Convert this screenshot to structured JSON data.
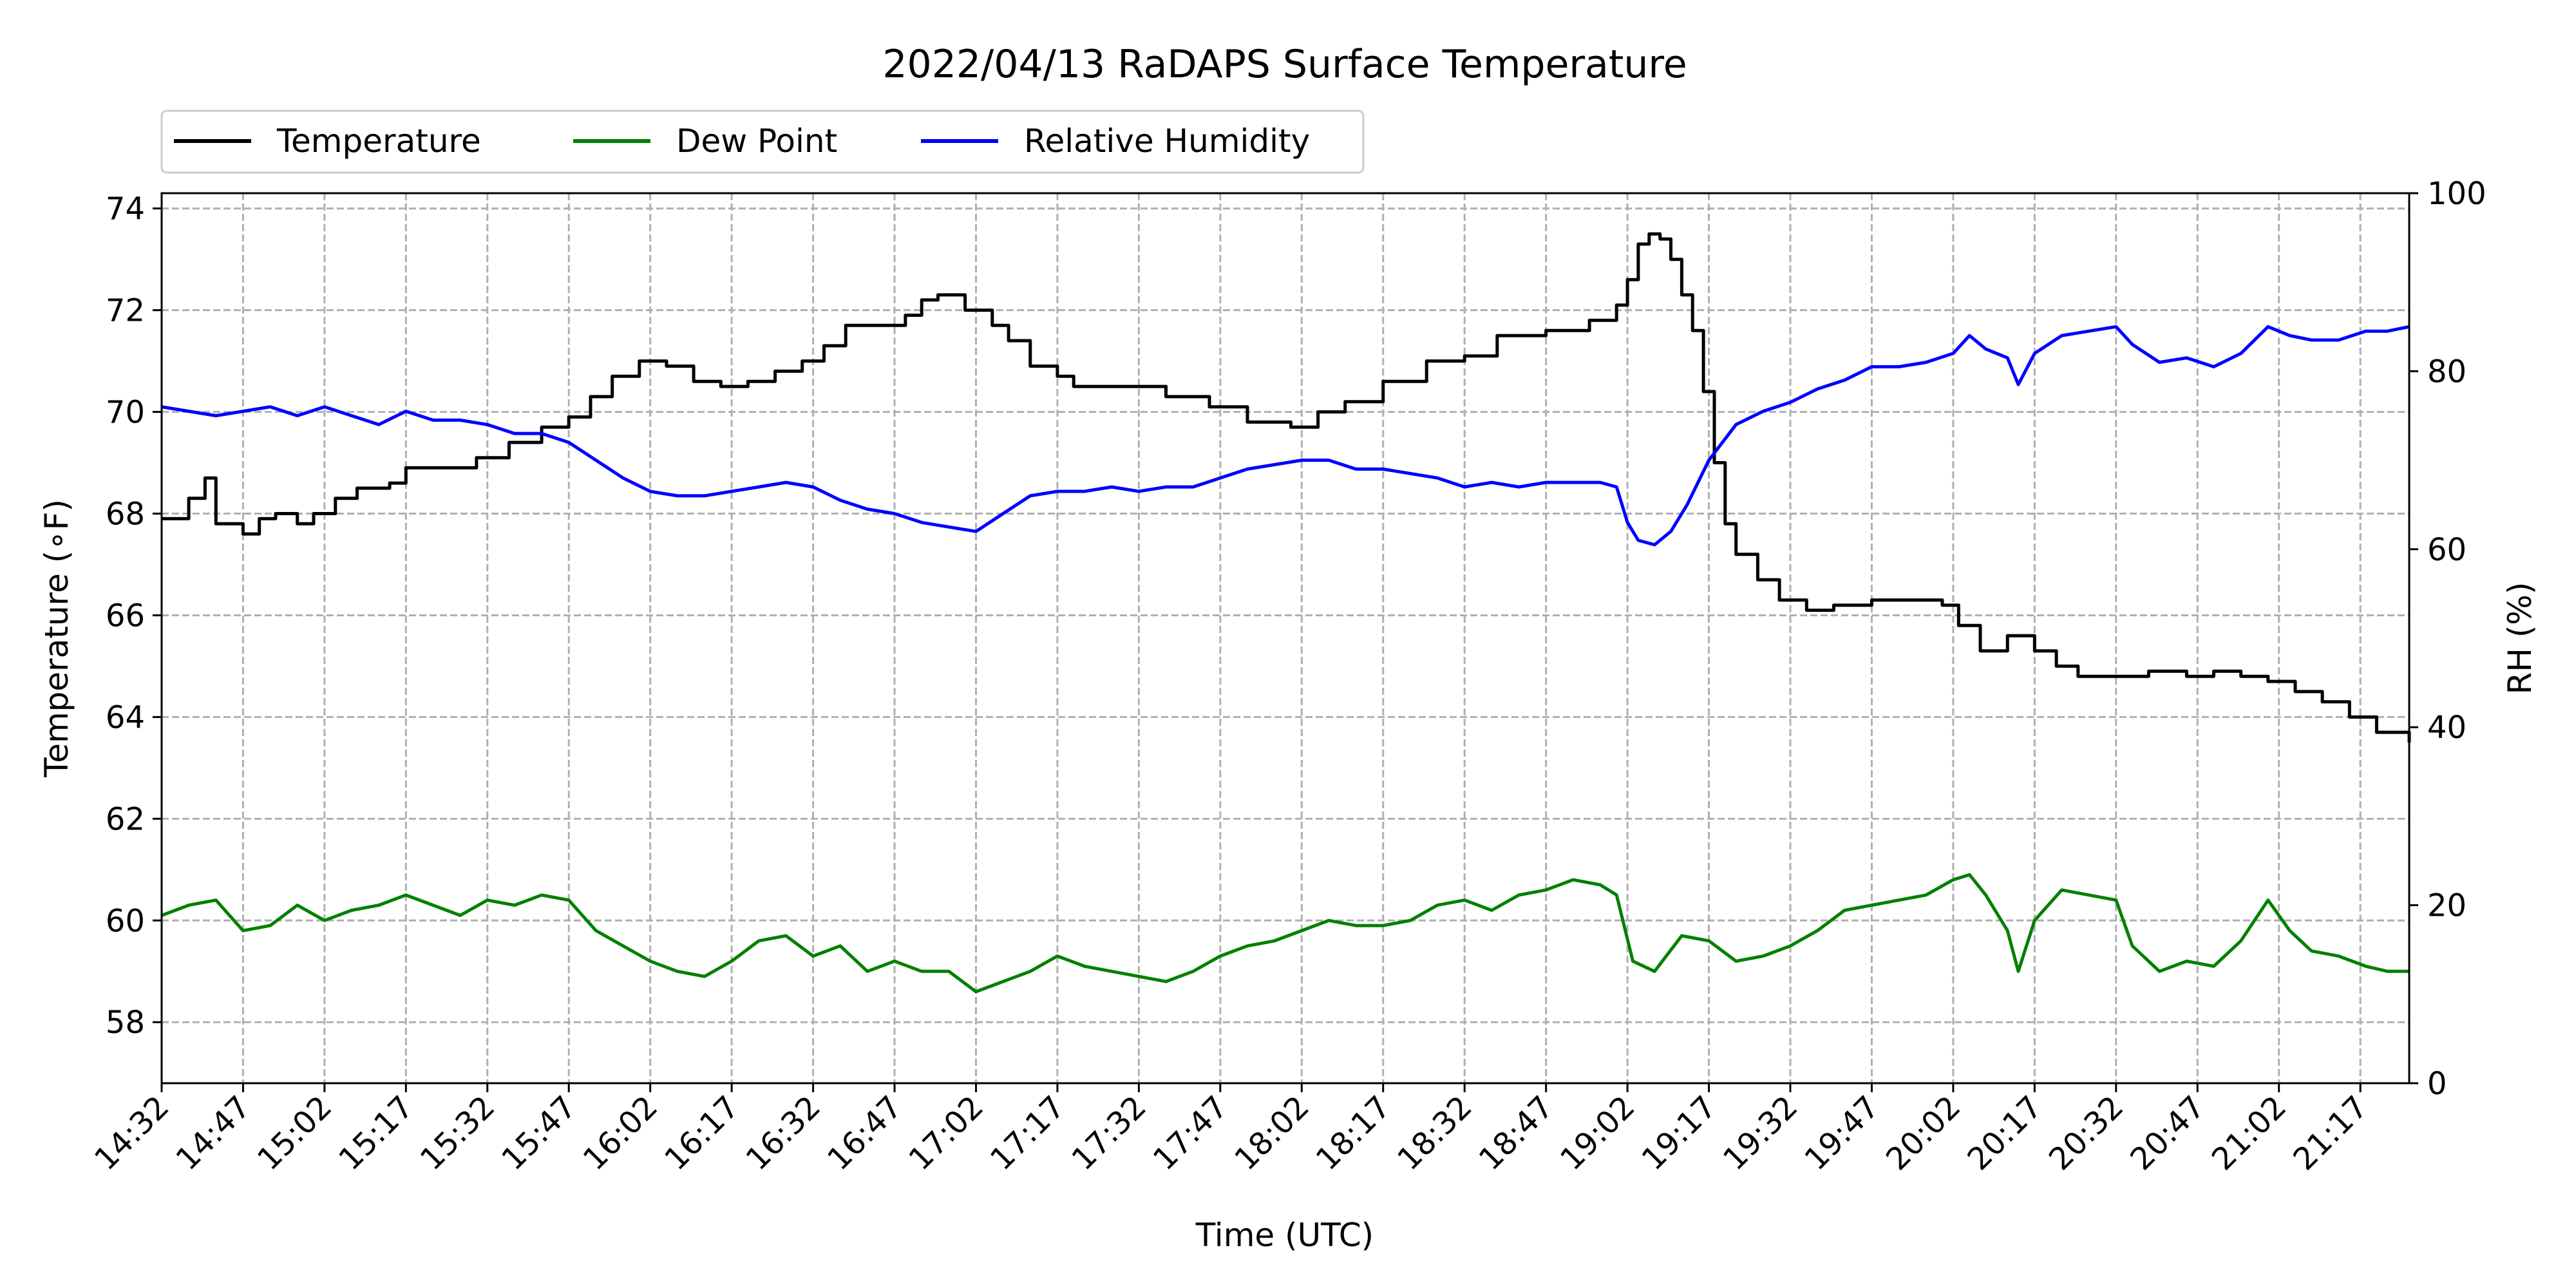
{
  "chart_data": {
    "type": "line",
    "title": "2022/04/13 RaDAPS Surface Temperature",
    "xlabel": "Time (UTC)",
    "ylabel": "Temperature (∘F)",
    "y2label": "RH (%)",
    "x_ticks": [
      "14:32",
      "14:47",
      "15:02",
      "15:17",
      "15:32",
      "15:47",
      "16:02",
      "16:17",
      "16:32",
      "16:47",
      "17:02",
      "17:17",
      "17:32",
      "17:47",
      "18:02",
      "18:17",
      "18:32",
      "18:47",
      "19:02",
      "19:17",
      "19:32",
      "19:47",
      "20:02",
      "20:17",
      "20:32",
      "20:47",
      "21:02",
      "21:17"
    ],
    "xlim": [
      "14:32",
      "21:26"
    ],
    "ylim": [
      56.8,
      74.3
    ],
    "y_ticks": [
      58,
      60,
      62,
      64,
      66,
      68,
      70,
      72,
      74
    ],
    "y2lim": [
      0,
      100
    ],
    "y2_ticks": [
      0,
      20,
      40,
      60,
      80,
      100
    ],
    "grid": true,
    "legend_position": "above-top-left",
    "series": [
      {
        "name": "Temperature",
        "axis": "left",
        "color": "#000000",
        "step": true,
        "points": [
          [
            "14:32",
            67.9
          ],
          [
            "14:37",
            68.3
          ],
          [
            "14:40",
            68.7
          ],
          [
            "14:42",
            67.8
          ],
          [
            "14:47",
            67.6
          ],
          [
            "14:50",
            67.9
          ],
          [
            "14:53",
            68.0
          ],
          [
            "14:57",
            67.8
          ],
          [
            "15:00",
            68.0
          ],
          [
            "15:04",
            68.3
          ],
          [
            "15:08",
            68.5
          ],
          [
            "15:14",
            68.6
          ],
          [
            "15:17",
            68.9
          ],
          [
            "15:23",
            68.9
          ],
          [
            "15:30",
            69.1
          ],
          [
            "15:36",
            69.4
          ],
          [
            "15:42",
            69.7
          ],
          [
            "15:47",
            69.9
          ],
          [
            "15:51",
            70.3
          ],
          [
            "15:55",
            70.7
          ],
          [
            "16:00",
            71.0
          ],
          [
            "16:05",
            70.9
          ],
          [
            "16:10",
            70.6
          ],
          [
            "16:15",
            70.5
          ],
          [
            "16:20",
            70.6
          ],
          [
            "16:25",
            70.8
          ],
          [
            "16:30",
            71.0
          ],
          [
            "16:34",
            71.3
          ],
          [
            "16:38",
            71.7
          ],
          [
            "16:45",
            71.7
          ],
          [
            "16:49",
            71.9
          ],
          [
            "16:52",
            72.2
          ],
          [
            "16:55",
            72.3
          ],
          [
            "17:00",
            72.0
          ],
          [
            "17:05",
            71.7
          ],
          [
            "17:08",
            71.4
          ],
          [
            "17:12",
            70.9
          ],
          [
            "17:17",
            70.7
          ],
          [
            "17:20",
            70.5
          ],
          [
            "17:30",
            70.5
          ],
          [
            "17:37",
            70.3
          ],
          [
            "17:45",
            70.1
          ],
          [
            "17:52",
            69.8
          ],
          [
            "18:00",
            69.7
          ],
          [
            "18:05",
            70.0
          ],
          [
            "18:10",
            70.2
          ],
          [
            "18:17",
            70.6
          ],
          [
            "18:25",
            71.0
          ],
          [
            "18:32",
            71.1
          ],
          [
            "18:38",
            71.5
          ],
          [
            "18:47",
            71.6
          ],
          [
            "18:55",
            71.8
          ],
          [
            "19:00",
            72.1
          ],
          [
            "19:02",
            72.6
          ],
          [
            "19:04",
            73.3
          ],
          [
            "19:06",
            73.5
          ],
          [
            "19:08",
            73.4
          ],
          [
            "19:10",
            73.0
          ],
          [
            "19:12",
            72.3
          ],
          [
            "19:14",
            71.6
          ],
          [
            "19:16",
            70.4
          ],
          [
            "19:18",
            69.0
          ],
          [
            "19:20",
            67.8
          ],
          [
            "19:22",
            67.2
          ],
          [
            "19:26",
            66.7
          ],
          [
            "19:30",
            66.3
          ],
          [
            "19:35",
            66.1
          ],
          [
            "19:40",
            66.2
          ],
          [
            "19:47",
            66.3
          ],
          [
            "19:55",
            66.3
          ],
          [
            "20:00",
            66.2
          ],
          [
            "20:03",
            65.8
          ],
          [
            "20:07",
            65.3
          ],
          [
            "20:12",
            65.6
          ],
          [
            "20:17",
            65.3
          ],
          [
            "20:21",
            65.0
          ],
          [
            "20:25",
            64.8
          ],
          [
            "20:32",
            64.8
          ],
          [
            "20:38",
            64.9
          ],
          [
            "20:45",
            64.8
          ],
          [
            "20:50",
            64.9
          ],
          [
            "20:55",
            64.8
          ],
          [
            "21:00",
            64.7
          ],
          [
            "21:05",
            64.5
          ],
          [
            "21:10",
            64.3
          ],
          [
            "21:15",
            64.0
          ],
          [
            "21:20",
            63.7
          ],
          [
            "21:26",
            63.5
          ]
        ]
      },
      {
        "name": "Dew Point",
        "axis": "left",
        "color": "#008000",
        "points": [
          [
            "14:32",
            60.1
          ],
          [
            "14:37",
            60.3
          ],
          [
            "14:42",
            60.4
          ],
          [
            "14:47",
            59.8
          ],
          [
            "14:52",
            59.9
          ],
          [
            "14:57",
            60.3
          ],
          [
            "15:02",
            60.0
          ],
          [
            "15:07",
            60.2
          ],
          [
            "15:12",
            60.3
          ],
          [
            "15:17",
            60.5
          ],
          [
            "15:22",
            60.3
          ],
          [
            "15:27",
            60.1
          ],
          [
            "15:32",
            60.4
          ],
          [
            "15:37",
            60.3
          ],
          [
            "15:42",
            60.5
          ],
          [
            "15:47",
            60.4
          ],
          [
            "15:52",
            59.8
          ],
          [
            "15:57",
            59.5
          ],
          [
            "16:02",
            59.2
          ],
          [
            "16:07",
            59.0
          ],
          [
            "16:12",
            58.9
          ],
          [
            "16:17",
            59.2
          ],
          [
            "16:22",
            59.6
          ],
          [
            "16:27",
            59.7
          ],
          [
            "16:32",
            59.3
          ],
          [
            "16:37",
            59.5
          ],
          [
            "16:42",
            59.0
          ],
          [
            "16:47",
            59.2
          ],
          [
            "16:52",
            59.0
          ],
          [
            "16:57",
            59.0
          ],
          [
            "17:02",
            58.6
          ],
          [
            "17:07",
            58.8
          ],
          [
            "17:12",
            59.0
          ],
          [
            "17:17",
            59.3
          ],
          [
            "17:22",
            59.1
          ],
          [
            "17:27",
            59.0
          ],
          [
            "17:32",
            58.9
          ],
          [
            "17:37",
            58.8
          ],
          [
            "17:42",
            59.0
          ],
          [
            "17:47",
            59.3
          ],
          [
            "17:52",
            59.5
          ],
          [
            "17:57",
            59.6
          ],
          [
            "18:02",
            59.8
          ],
          [
            "18:07",
            60.0
          ],
          [
            "18:12",
            59.9
          ],
          [
            "18:17",
            59.9
          ],
          [
            "18:22",
            60.0
          ],
          [
            "18:27",
            60.3
          ],
          [
            "18:32",
            60.4
          ],
          [
            "18:37",
            60.2
          ],
          [
            "18:42",
            60.5
          ],
          [
            "18:47",
            60.6
          ],
          [
            "18:52",
            60.8
          ],
          [
            "18:57",
            60.7
          ],
          [
            "19:00",
            60.5
          ],
          [
            "19:03",
            59.2
          ],
          [
            "19:07",
            59.0
          ],
          [
            "19:12",
            59.7
          ],
          [
            "19:17",
            59.6
          ],
          [
            "19:22",
            59.2
          ],
          [
            "19:27",
            59.3
          ],
          [
            "19:32",
            59.5
          ],
          [
            "19:37",
            59.8
          ],
          [
            "19:42",
            60.2
          ],
          [
            "19:47",
            60.3
          ],
          [
            "19:52",
            60.4
          ],
          [
            "19:57",
            60.5
          ],
          [
            "20:02",
            60.8
          ],
          [
            "20:05",
            60.9
          ],
          [
            "20:08",
            60.5
          ],
          [
            "20:12",
            59.8
          ],
          [
            "20:14",
            59.0
          ],
          [
            "20:17",
            60.0
          ],
          [
            "20:22",
            60.6
          ],
          [
            "20:27",
            60.5
          ],
          [
            "20:32",
            60.4
          ],
          [
            "20:35",
            59.5
          ],
          [
            "20:40",
            59.0
          ],
          [
            "20:45",
            59.2
          ],
          [
            "20:50",
            59.1
          ],
          [
            "20:55",
            59.6
          ],
          [
            "21:00",
            60.4
          ],
          [
            "21:04",
            59.8
          ],
          [
            "21:08",
            59.4
          ],
          [
            "21:13",
            59.3
          ],
          [
            "21:18",
            59.1
          ],
          [
            "21:22",
            59.0
          ],
          [
            "21:26",
            59.0
          ]
        ]
      },
      {
        "name": "Relative Humidity",
        "axis": "right",
        "color": "#0000ff",
        "points": [
          [
            "14:32",
            76
          ],
          [
            "14:37",
            75.5
          ],
          [
            "14:42",
            75
          ],
          [
            "14:47",
            75.5
          ],
          [
            "14:52",
            76
          ],
          [
            "14:57",
            75
          ],
          [
            "15:02",
            76
          ],
          [
            "15:07",
            75
          ],
          [
            "15:12",
            74
          ],
          [
            "15:17",
            75.5
          ],
          [
            "15:22",
            74.5
          ],
          [
            "15:27",
            74.5
          ],
          [
            "15:32",
            74
          ],
          [
            "15:37",
            73
          ],
          [
            "15:42",
            73
          ],
          [
            "15:47",
            72
          ],
          [
            "15:52",
            70
          ],
          [
            "15:57",
            68
          ],
          [
            "16:02",
            66.5
          ],
          [
            "16:07",
            66
          ],
          [
            "16:12",
            66
          ],
          [
            "16:17",
            66.5
          ],
          [
            "16:22",
            67
          ],
          [
            "16:27",
            67.5
          ],
          [
            "16:32",
            67
          ],
          [
            "16:37",
            65.5
          ],
          [
            "16:42",
            64.5
          ],
          [
            "16:47",
            64
          ],
          [
            "16:52",
            63
          ],
          [
            "16:57",
            62.5
          ],
          [
            "17:02",
            62
          ],
          [
            "17:07",
            64
          ],
          [
            "17:12",
            66
          ],
          [
            "17:17",
            66.5
          ],
          [
            "17:22",
            66.5
          ],
          [
            "17:27",
            67
          ],
          [
            "17:32",
            66.5
          ],
          [
            "17:37",
            67
          ],
          [
            "17:42",
            67
          ],
          [
            "17:47",
            68
          ],
          [
            "17:52",
            69
          ],
          [
            "17:57",
            69.5
          ],
          [
            "18:02",
            70
          ],
          [
            "18:07",
            70
          ],
          [
            "18:12",
            69
          ],
          [
            "18:17",
            69
          ],
          [
            "18:22",
            68.5
          ],
          [
            "18:27",
            68
          ],
          [
            "18:32",
            67
          ],
          [
            "18:37",
            67.5
          ],
          [
            "18:42",
            67
          ],
          [
            "18:47",
            67.5
          ],
          [
            "18:52",
            67.5
          ],
          [
            "18:57",
            67.5
          ],
          [
            "19:00",
            67
          ],
          [
            "19:02",
            63
          ],
          [
            "19:04",
            61
          ],
          [
            "19:07",
            60.5
          ],
          [
            "19:10",
            62
          ],
          [
            "19:13",
            65
          ],
          [
            "19:17",
            70
          ],
          [
            "19:22",
            74
          ],
          [
            "19:27",
            75.5
          ],
          [
            "19:32",
            76.5
          ],
          [
            "19:37",
            78
          ],
          [
            "19:42",
            79
          ],
          [
            "19:47",
            80.5
          ],
          [
            "19:52",
            80.5
          ],
          [
            "19:57",
            81
          ],
          [
            "20:02",
            82
          ],
          [
            "20:05",
            84
          ],
          [
            "20:08",
            82.5
          ],
          [
            "20:12",
            81.5
          ],
          [
            "20:14",
            78.5
          ],
          [
            "20:17",
            82
          ],
          [
            "20:22",
            84
          ],
          [
            "20:27",
            84.5
          ],
          [
            "20:32",
            85
          ],
          [
            "20:35",
            83
          ],
          [
            "20:40",
            81
          ],
          [
            "20:45",
            81.5
          ],
          [
            "20:50",
            80.5
          ],
          [
            "20:55",
            82
          ],
          [
            "21:00",
            85
          ],
          [
            "21:04",
            84
          ],
          [
            "21:08",
            83.5
          ],
          [
            "21:13",
            83.5
          ],
          [
            "21:18",
            84.5
          ],
          [
            "21:22",
            84.5
          ],
          [
            "21:26",
            85
          ]
        ]
      }
    ]
  }
}
